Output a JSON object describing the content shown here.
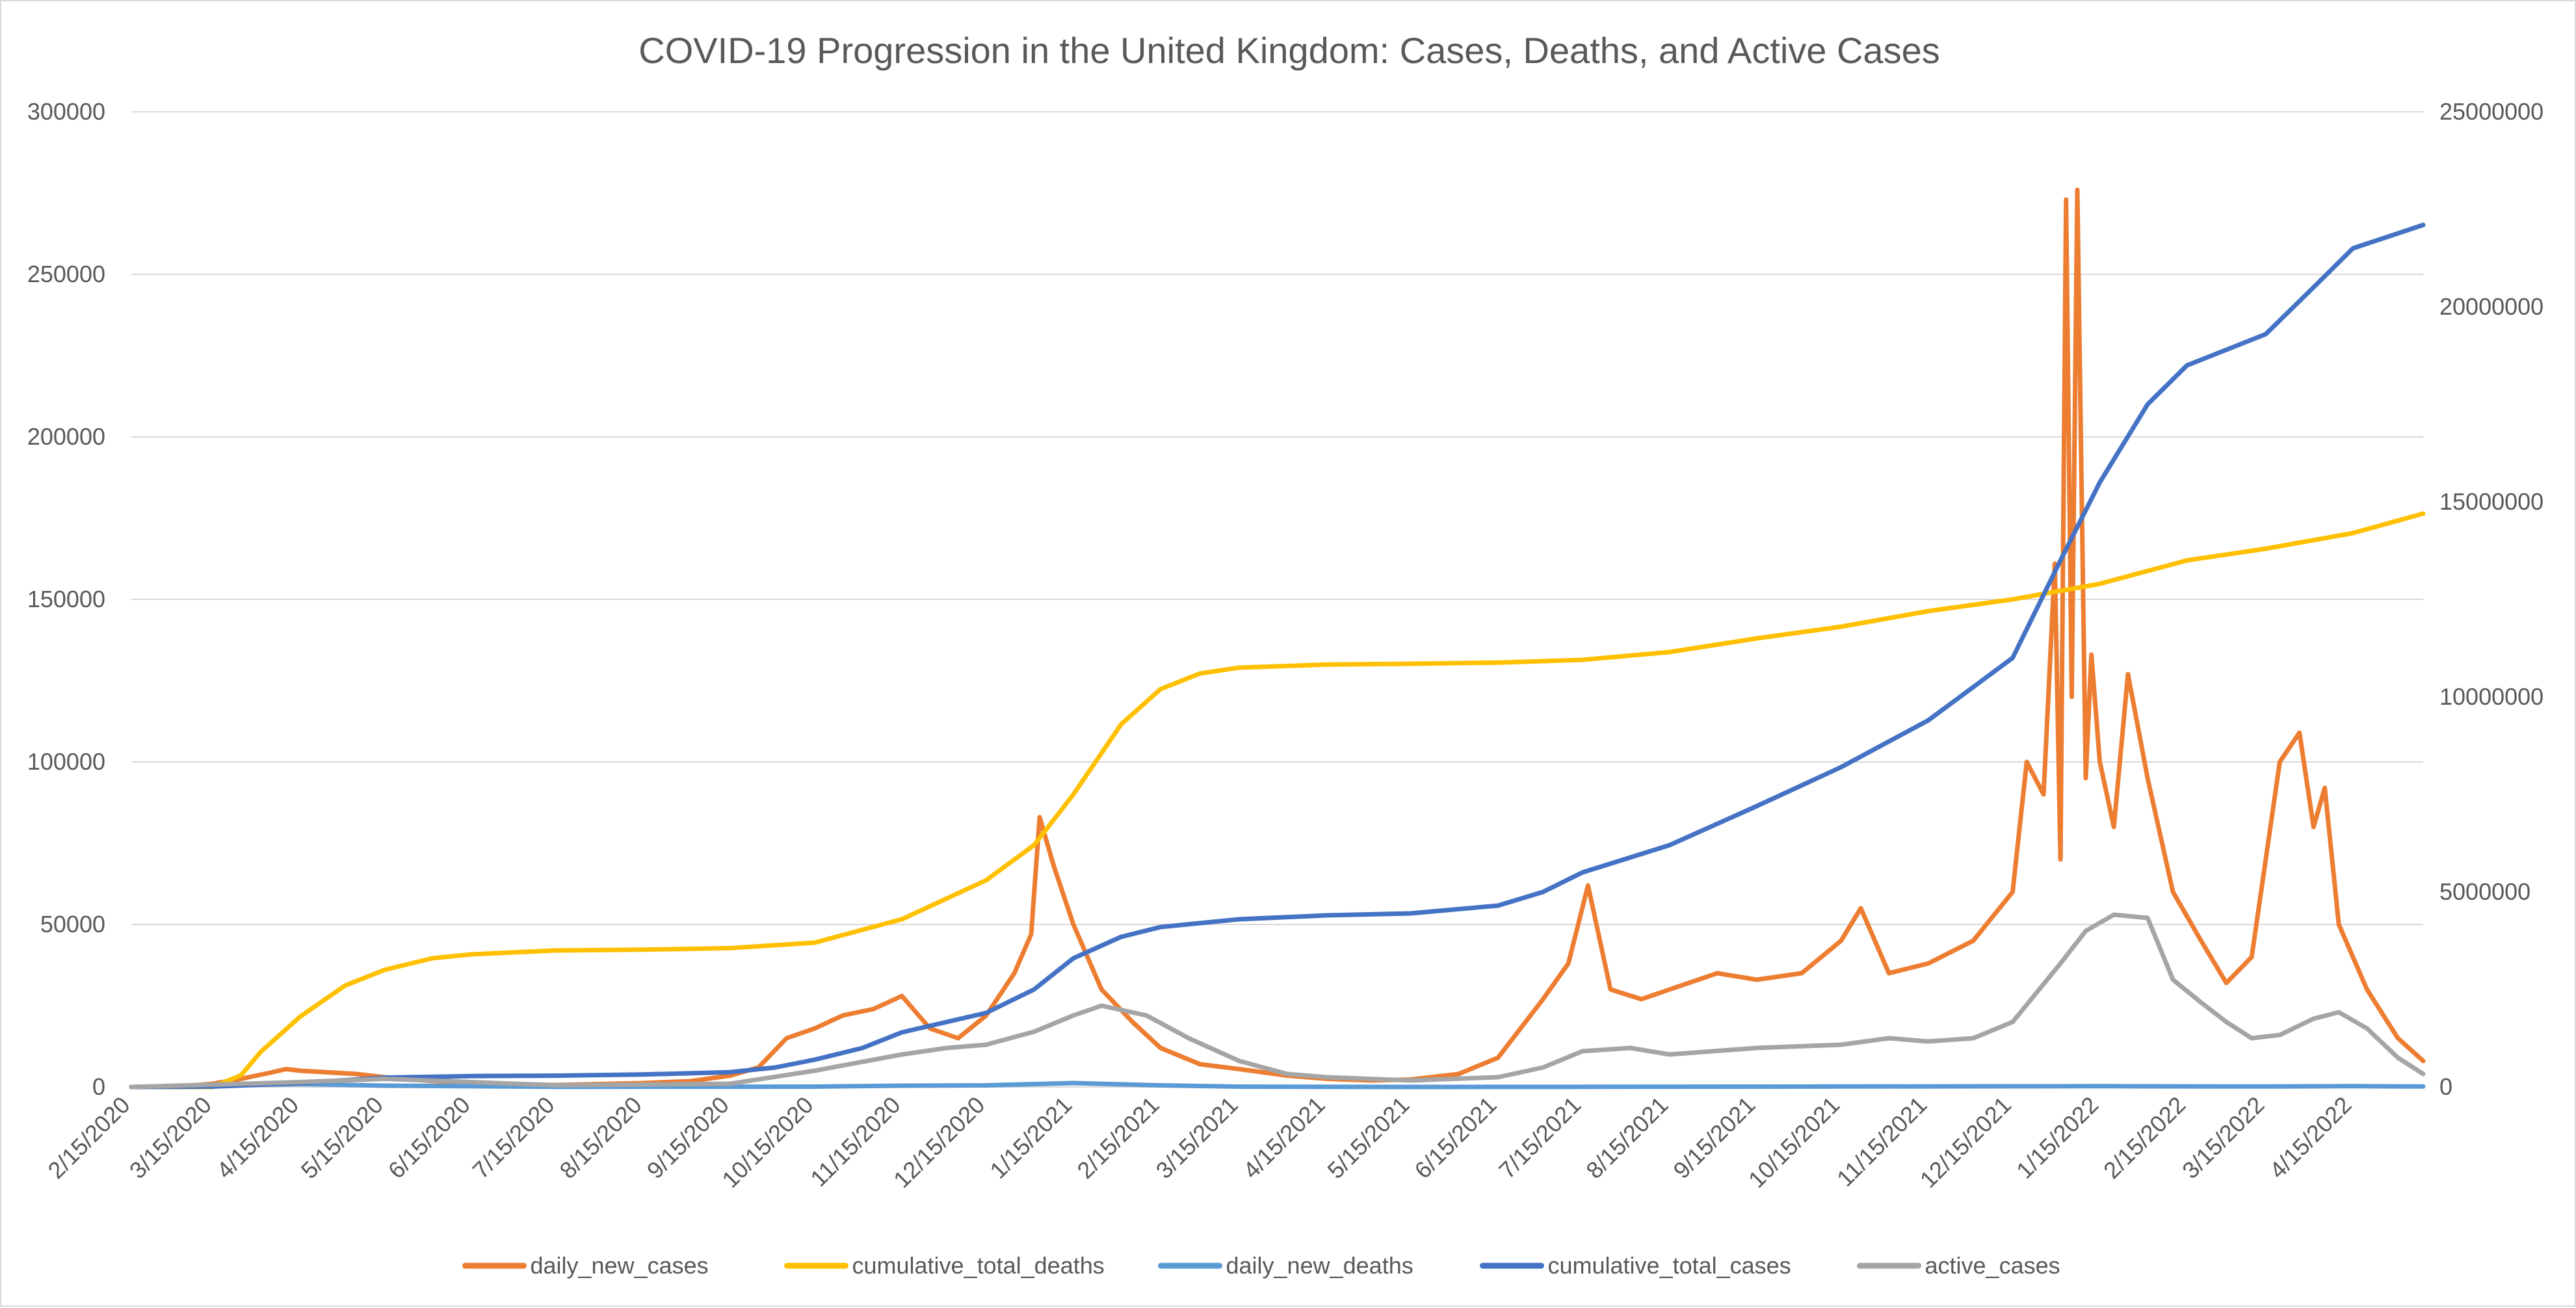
{
  "chart_data": {
    "type": "line",
    "title": "COVID-19 Progression in the United Kingdom: Cases, Deaths, and Active Cases",
    "xlabel": "",
    "ylabel": "",
    "ylim": [
      0,
      300000
    ],
    "y2lim": [
      0,
      25000000
    ],
    "y_ticks": [
      "0",
      "50000",
      "100000",
      "150000",
      "200000",
      "250000",
      "300000"
    ],
    "y2_ticks": [
      "0",
      "5000000",
      "10000000",
      "15000000",
      "20000000",
      "25000000"
    ],
    "x_ticks": [
      "2/15/2020",
      "3/15/2020",
      "4/15/2020",
      "5/15/2020",
      "6/15/2020",
      "7/15/2020",
      "8/15/2020",
      "9/15/2020",
      "10/15/2020",
      "11/15/2020",
      "12/15/2020",
      "1/15/2021",
      "2/15/2021",
      "3/15/2021",
      "4/15/2021",
      "5/15/2021",
      "6/15/2021",
      "7/15/2021",
      "8/15/2021",
      "9/15/2021",
      "10/15/2021",
      "11/15/2021",
      "12/15/2021",
      "1/15/2022",
      "2/15/2022",
      "3/15/2022",
      "4/15/2022"
    ],
    "x_range": [
      "2/15/2020",
      "5/10/2022"
    ],
    "grid": true,
    "legend_position": "bottom",
    "series": [
      {
        "name": "daily_new_cases",
        "axis": "left",
        "color": "#ED7D31",
        "points": [
          [
            "2/15/2020",
            0
          ],
          [
            "3/1/2020",
            0
          ],
          [
            "3/15/2020",
            1000
          ],
          [
            "3/25/2020",
            2500
          ],
          [
            "4/5/2020",
            4500
          ],
          [
            "4/10/2020",
            5500
          ],
          [
            "4/15/2020",
            5000
          ],
          [
            "4/25/2020",
            4500
          ],
          [
            "5/5/2020",
            4000
          ],
          [
            "5/15/2020",
            3000
          ],
          [
            "6/1/2020",
            1800
          ],
          [
            "6/15/2020",
            1200
          ],
          [
            "7/15/2020",
            600
          ],
          [
            "8/15/2020",
            1200
          ],
          [
            "9/1/2020",
            1800
          ],
          [
            "9/15/2020",
            3500
          ],
          [
            "9/25/2020",
            6000
          ],
          [
            "10/5/2020",
            15000
          ],
          [
            "10/15/2020",
            18000
          ],
          [
            "10/25/2020",
            22000
          ],
          [
            "11/5/2020",
            24000
          ],
          [
            "11/15/2020",
            28000
          ],
          [
            "11/25/2020",
            18000
          ],
          [
            "12/5/2020",
            15000
          ],
          [
            "12/15/2020",
            22000
          ],
          [
            "12/25/2020",
            35000
          ],
          [
            "12/31/2020",
            47000
          ],
          [
            "1/3/2021",
            83000
          ],
          [
            "1/8/2021",
            68000
          ],
          [
            "1/15/2021",
            50000
          ],
          [
            "1/25/2021",
            30000
          ],
          [
            "2/5/2021",
            20000
          ],
          [
            "2/15/2021",
            12000
          ],
          [
            "3/1/2021",
            7000
          ],
          [
            "3/15/2021",
            5500
          ],
          [
            "4/1/2021",
            3500
          ],
          [
            "4/15/2021",
            2500
          ],
          [
            "5/1/2021",
            2000
          ],
          [
            "5/15/2021",
            2300
          ],
          [
            "6/1/2021",
            4000
          ],
          [
            "6/15/2021",
            9000
          ],
          [
            "7/1/2021",
            27000
          ],
          [
            "7/10/2021",
            38000
          ],
          [
            "7/17/2021",
            62000
          ],
          [
            "7/25/2021",
            30000
          ],
          [
            "8/5/2021",
            27000
          ],
          [
            "8/15/2021",
            30000
          ],
          [
            "9/1/2021",
            35000
          ],
          [
            "9/15/2021",
            33000
          ],
          [
            "10/1/2021",
            35000
          ],
          [
            "10/15/2021",
            45000
          ],
          [
            "10/22/2021",
            55000
          ],
          [
            "11/1/2021",
            35000
          ],
          [
            "11/15/2021",
            38000
          ],
          [
            "12/1/2021",
            45000
          ],
          [
            "12/15/2021",
            60000
          ],
          [
            "12/20/2021",
            100000
          ],
          [
            "12/26/2021",
            90000
          ],
          [
            "12/30/2021",
            161000
          ],
          [
            "1/1/2022",
            70000
          ],
          [
            "1/3/2022",
            273000
          ],
          [
            "1/5/2022",
            120000
          ],
          [
            "1/7/2022",
            276000
          ],
          [
            "1/10/2022",
            95000
          ],
          [
            "1/12/2022",
            133000
          ],
          [
            "1/15/2022",
            100000
          ],
          [
            "1/20/2022",
            80000
          ],
          [
            "1/25/2022",
            127000
          ],
          [
            "2/1/2022",
            95000
          ],
          [
            "2/10/2022",
            60000
          ],
          [
            "2/20/2022",
            45000
          ],
          [
            "3/1/2022",
            32000
          ],
          [
            "3/10/2022",
            40000
          ],
          [
            "3/15/2022",
            70000
          ],
          [
            "3/20/2022",
            100000
          ],
          [
            "3/27/2022",
            109000
          ],
          [
            "4/1/2022",
            80000
          ],
          [
            "4/5/2022",
            92000
          ],
          [
            "4/10/2022",
            50000
          ],
          [
            "4/20/2022",
            30000
          ],
          [
            "5/1/2022",
            15000
          ],
          [
            "5/10/2022",
            8000
          ]
        ]
      },
      {
        "name": "cumulative_total_deaths",
        "axis": "right",
        "color": "#FFC000",
        "points": [
          [
            "2/15/2020",
            0
          ],
          [
            "3/15/2020",
            100
          ],
          [
            "3/25/2020",
            300000
          ],
          [
            "4/1/2020",
            900000
          ],
          [
            "4/15/2020",
            1800000
          ],
          [
            "5/1/2020",
            2600000
          ],
          [
            "5/15/2020",
            3000000
          ],
          [
            "6/1/2020",
            3300000
          ],
          [
            "6/15/2020",
            3400000
          ],
          [
            "7/15/2020",
            3500000
          ],
          [
            "8/15/2020",
            3520000
          ],
          [
            "9/15/2020",
            3560000
          ],
          [
            "10/15/2020",
            3700000
          ],
          [
            "11/15/2020",
            4300000
          ],
          [
            "12/15/2020",
            5300000
          ],
          [
            "1/1/2021",
            6200000
          ],
          [
            "1/15/2021",
            7500000
          ],
          [
            "2/1/2021",
            9300000
          ],
          [
            "2/15/2021",
            10200000
          ],
          [
            "3/1/2021",
            10600000
          ],
          [
            "3/15/2021",
            10750000
          ],
          [
            "4/15/2021",
            10830000
          ],
          [
            "5/15/2021",
            10850000
          ],
          [
            "6/15/2021",
            10880000
          ],
          [
            "7/15/2021",
            10950000
          ],
          [
            "8/15/2021",
            11150000
          ],
          [
            "9/15/2021",
            11500000
          ],
          [
            "10/15/2021",
            11800000
          ],
          [
            "11/15/2021",
            12200000
          ],
          [
            "12/15/2021",
            12500000
          ],
          [
            "1/15/2022",
            12900000
          ],
          [
            "2/15/2022",
            13500000
          ],
          [
            "3/15/2022",
            13800000
          ],
          [
            "4/15/2022",
            14200000
          ],
          [
            "5/10/2022",
            14700000
          ]
        ]
      },
      {
        "name": "daily_new_deaths",
        "axis": "left",
        "color": "#5B9BD5",
        "points": [
          [
            "2/15/2020",
            0
          ],
          [
            "4/15/2020",
            900
          ],
          [
            "5/15/2020",
            400
          ],
          [
            "7/15/2020",
            50
          ],
          [
            "10/15/2020",
            100
          ],
          [
            "11/15/2020",
            400
          ],
          [
            "12/15/2020",
            500
          ],
          [
            "1/15/2021",
            1200
          ],
          [
            "2/15/2021",
            500
          ],
          [
            "3/15/2021",
            100
          ],
          [
            "5/15/2021",
            10
          ],
          [
            "7/15/2021",
            50
          ],
          [
            "10/15/2021",
            150
          ],
          [
            "1/15/2022",
            250
          ],
          [
            "3/15/2022",
            150
          ],
          [
            "4/15/2022",
            250
          ],
          [
            "5/10/2022",
            150
          ]
        ]
      },
      {
        "name": "cumulative_total_cases",
        "axis": "right",
        "color": "#4472C4",
        "points": [
          [
            "2/15/2020",
            0
          ],
          [
            "3/15/2020",
            10000
          ],
          [
            "4/15/2020",
            100000
          ],
          [
            "5/15/2020",
            240000
          ],
          [
            "6/15/2020",
            280000
          ],
          [
            "7/15/2020",
            290000
          ],
          [
            "8/15/2020",
            320000
          ],
          [
            "9/15/2020",
            380000
          ],
          [
            "10/1/2020",
            500000
          ],
          [
            "10/15/2020",
            700000
          ],
          [
            "11/1/2020",
            1000000
          ],
          [
            "11/15/2020",
            1400000
          ],
          [
            "12/15/2020",
            1900000
          ],
          [
            "1/1/2021",
            2500000
          ],
          [
            "1/15/2021",
            3300000
          ],
          [
            "2/1/2021",
            3850000
          ],
          [
            "2/15/2021",
            4100000
          ],
          [
            "3/15/2021",
            4300000
          ],
          [
            "4/15/2021",
            4400000
          ],
          [
            "5/15/2021",
            4450000
          ],
          [
            "6/15/2021",
            4650000
          ],
          [
            "7/1/2021",
            5000000
          ],
          [
            "7/15/2021",
            5500000
          ],
          [
            "8/15/2021",
            6200000
          ],
          [
            "9/15/2021",
            7200000
          ],
          [
            "10/15/2021",
            8200000
          ],
          [
            "11/15/2021",
            9400000
          ],
          [
            "12/15/2021",
            11000000
          ],
          [
            "1/1/2022",
            13500000
          ],
          [
            "1/15/2022",
            15500000
          ],
          [
            "2/1/2022",
            17500000
          ],
          [
            "2/15/2022",
            18500000
          ],
          [
            "3/15/2022",
            19300000
          ],
          [
            "4/1/2022",
            20500000
          ],
          [
            "4/15/2022",
            21500000
          ],
          [
            "5/10/2022",
            22100000
          ]
        ]
      },
      {
        "name": "active_cases",
        "axis": "left",
        "color": "#A5A5A5",
        "points": [
          [
            "2/15/2020",
            0
          ],
          [
            "4/15/2020",
            1500
          ],
          [
            "5/15/2020",
            2500
          ],
          [
            "6/15/2020",
            1500
          ],
          [
            "7/15/2020",
            500
          ],
          [
            "9/15/2020",
            1000
          ],
          [
            "10/15/2020",
            5000
          ],
          [
            "11/15/2020",
            10000
          ],
          [
            "12/1/2020",
            12000
          ],
          [
            "12/15/2020",
            13000
          ],
          [
            "1/1/2021",
            17000
          ],
          [
            "1/15/2021",
            22000
          ],
          [
            "1/25/2021",
            25000
          ],
          [
            "2/10/2021",
            22000
          ],
          [
            "2/25/2021",
            15000
          ],
          [
            "3/15/2021",
            8000
          ],
          [
            "4/1/2021",
            4000
          ],
          [
            "4/15/2021",
            3000
          ],
          [
            "5/15/2021",
            2000
          ],
          [
            "6/15/2021",
            3000
          ],
          [
            "7/1/2021",
            6000
          ],
          [
            "7/15/2021",
            11000
          ],
          [
            "8/1/2021",
            12000
          ],
          [
            "8/15/2021",
            10000
          ],
          [
            "9/15/2021",
            12000
          ],
          [
            "10/15/2021",
            13000
          ],
          [
            "11/1/2021",
            15000
          ],
          [
            "11/15/2021",
            14000
          ],
          [
            "12/1/2021",
            15000
          ],
          [
            "12/15/2021",
            20000
          ],
          [
            "1/1/2022",
            38000
          ],
          [
            "1/10/2022",
            48000
          ],
          [
            "1/20/2022",
            53000
          ],
          [
            "2/1/2022",
            52000
          ],
          [
            "2/10/2022",
            33000
          ],
          [
            "2/20/2022",
            26000
          ],
          [
            "3/1/2022",
            20000
          ],
          [
            "3/10/2022",
            15000
          ],
          [
            "3/20/2022",
            16000
          ],
          [
            "4/1/2022",
            21000
          ],
          [
            "4/10/2022",
            23000
          ],
          [
            "4/20/2022",
            18000
          ],
          [
            "5/1/2022",
            9000
          ],
          [
            "5/10/2022",
            4000
          ]
        ]
      }
    ]
  }
}
